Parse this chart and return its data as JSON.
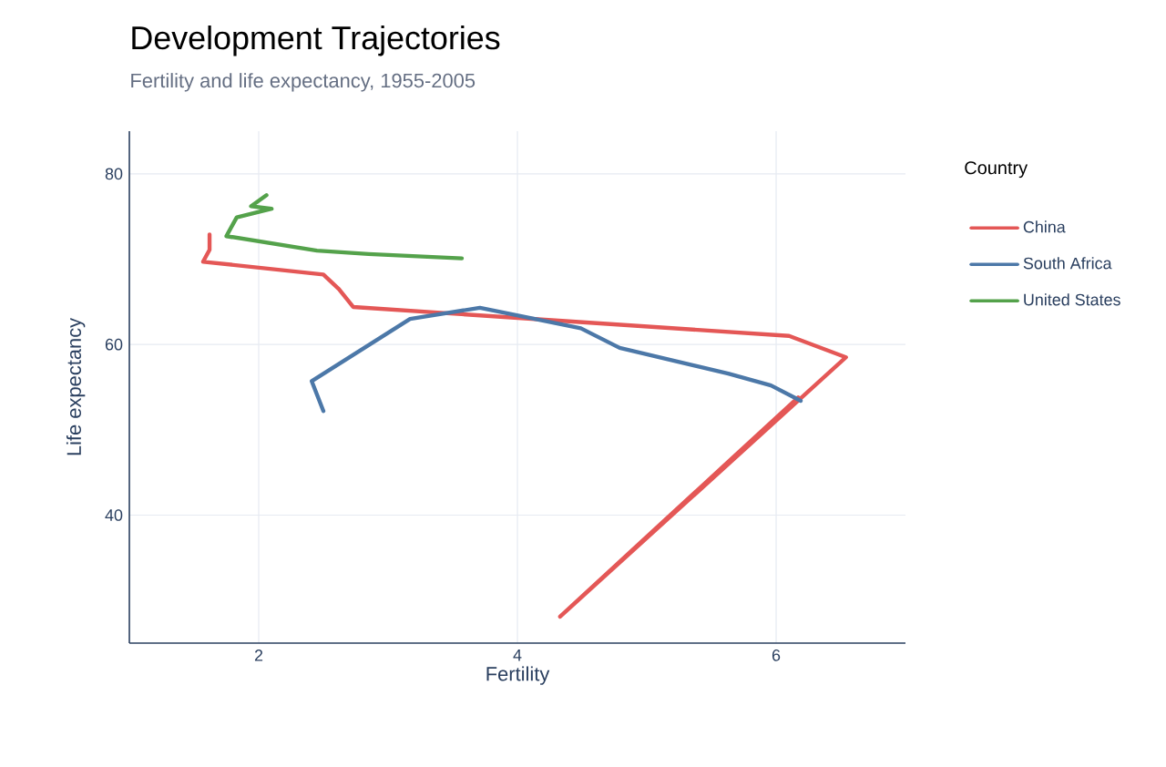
{
  "chart_data": {
    "type": "line",
    "title": "Development Trajectories",
    "subtitle": "Fertility and life expectancy, 1955-2005",
    "xlabel": "Fertility",
    "ylabel": "Life expectancy",
    "legend_title": "Country",
    "xlim": [
      1,
      7
    ],
    "ylim": [
      25,
      85
    ],
    "xticks": [
      2,
      4,
      6
    ],
    "yticks": [
      40,
      60,
      80
    ],
    "grid": true,
    "legend": "top right",
    "marker": "none",
    "line_style": "solid",
    "series": [
      {
        "name": "China",
        "color": "#e45756",
        "x": [
          6.17,
          4.33,
          6.54,
          6.1,
          2.73,
          2.62,
          2.5,
          1.57,
          1.62,
          1.62
        ],
        "values": [
          53.8,
          28.1,
          58.5,
          61.0,
          64.4,
          66.5,
          68.2,
          69.7,
          71.1,
          72.9
        ]
      },
      {
        "name": "South Africa",
        "color": "#4c78a8",
        "x": [
          6.19,
          5.96,
          5.63,
          4.79,
          4.49,
          3.71,
          3.17,
          2.41,
          2.5
        ],
        "values": [
          53.4,
          55.2,
          56.6,
          59.6,
          61.9,
          64.3,
          63.0,
          55.7,
          52.2
        ]
      },
      {
        "name": "United States",
        "color": "#54a24b",
        "x": [
          3.57,
          2.85,
          2.45,
          1.75,
          1.83,
          2.1,
          1.94,
          2.06
        ],
        "values": [
          70.1,
          70.6,
          71.0,
          72.7,
          74.9,
          75.9,
          76.2,
          77.5
        ]
      }
    ]
  }
}
